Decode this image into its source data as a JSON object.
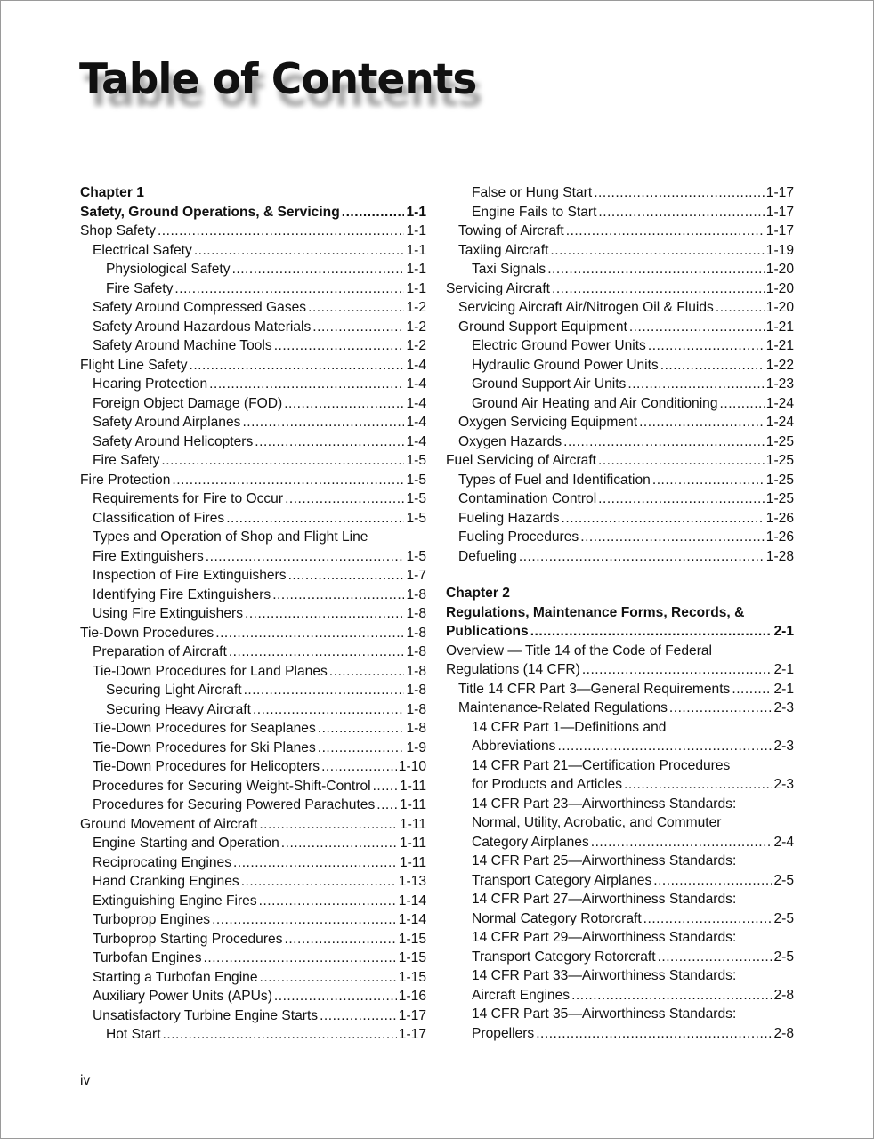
{
  "page_title": "Table of Contents",
  "folio": "iv",
  "left_column": [
    {
      "type": "chapter",
      "label": "Chapter 1",
      "lines": [
        "Safety, Ground Operations, & Servicing"
      ],
      "page": "1-1"
    },
    {
      "level": 0,
      "lines": [
        "Shop Safety"
      ],
      "page": "1-1"
    },
    {
      "level": 1,
      "lines": [
        "Electrical Safety"
      ],
      "page": "1-1"
    },
    {
      "level": 2,
      "lines": [
        "Physiological Safety"
      ],
      "page": "1-1"
    },
    {
      "level": 2,
      "lines": [
        "Fire Safety"
      ],
      "page": "1-1"
    },
    {
      "level": 1,
      "lines": [
        "Safety Around Compressed Gases"
      ],
      "page": "1-2"
    },
    {
      "level": 1,
      "lines": [
        "Safety Around Hazardous Materials"
      ],
      "page": "1-2"
    },
    {
      "level": 1,
      "lines": [
        "Safety Around Machine Tools"
      ],
      "page": "1-2"
    },
    {
      "level": 0,
      "lines": [
        "Flight Line Safety"
      ],
      "page": "1-4"
    },
    {
      "level": 1,
      "lines": [
        "Hearing Protection"
      ],
      "page": "1-4"
    },
    {
      "level": 1,
      "lines": [
        "Foreign Object Damage (FOD)"
      ],
      "page": "1-4"
    },
    {
      "level": 1,
      "lines": [
        "Safety Around Airplanes"
      ],
      "page": "1-4"
    },
    {
      "level": 1,
      "lines": [
        "Safety Around Helicopters"
      ],
      "page": "1-4"
    },
    {
      "level": 1,
      "lines": [
        "Fire Safety"
      ],
      "page": "1-5"
    },
    {
      "level": 0,
      "lines": [
        "Fire Protection"
      ],
      "page": "1-5"
    },
    {
      "level": 1,
      "lines": [
        "Requirements for Fire to Occur"
      ],
      "page": "1-5"
    },
    {
      "level": 1,
      "lines": [
        "Classification of Fires"
      ],
      "page": "1-5"
    },
    {
      "level": 1,
      "lines": [
        "Types and Operation of Shop and Flight Line",
        "Fire Extinguishers"
      ],
      "page": "1-5"
    },
    {
      "level": 1,
      "lines": [
        "Inspection of Fire Extinguishers"
      ],
      "page": "1-7"
    },
    {
      "level": 1,
      "lines": [
        "Identifying Fire Extinguishers"
      ],
      "page": "1-8"
    },
    {
      "level": 1,
      "lines": [
        "Using Fire Extinguishers"
      ],
      "page": "1-8"
    },
    {
      "level": 0,
      "lines": [
        "Tie-Down Procedures"
      ],
      "page": "1-8"
    },
    {
      "level": 1,
      "lines": [
        "Preparation of Aircraft"
      ],
      "page": "1-8"
    },
    {
      "level": 1,
      "lines": [
        "Tie-Down Procedures for Land Planes"
      ],
      "page": "1-8"
    },
    {
      "level": 2,
      "lines": [
        "Securing Light Aircraft"
      ],
      "page": "1-8"
    },
    {
      "level": 2,
      "lines": [
        "Securing Heavy Aircraft"
      ],
      "page": "1-8"
    },
    {
      "level": 1,
      "lines": [
        "Tie-Down Procedures for Seaplanes"
      ],
      "page": "1-8"
    },
    {
      "level": 1,
      "lines": [
        "Tie-Down Procedures for Ski Planes"
      ],
      "page": "1-9"
    },
    {
      "level": 1,
      "lines": [
        "Tie-Down Procedures for Helicopters"
      ],
      "page": "1-10"
    },
    {
      "level": 1,
      "lines": [
        "Procedures for Securing Weight-Shift-Control"
      ],
      "page": "1-11"
    },
    {
      "level": 1,
      "lines": [
        "Procedures for Securing Powered Parachutes"
      ],
      "page": "1-11"
    },
    {
      "level": 0,
      "lines": [
        "Ground Movement of Aircraft"
      ],
      "page": "1-11"
    },
    {
      "level": 1,
      "lines": [
        "Engine Starting and Operation"
      ],
      "page": "1-11"
    },
    {
      "level": 1,
      "lines": [
        "Reciprocating Engines"
      ],
      "page": "1-11"
    },
    {
      "level": 1,
      "lines": [
        "Hand Cranking Engines"
      ],
      "page": "1-13"
    },
    {
      "level": 1,
      "lines": [
        "Extinguishing Engine Fires"
      ],
      "page": "1-14"
    },
    {
      "level": 1,
      "lines": [
        "Turboprop Engines"
      ],
      "page": "1-14"
    },
    {
      "level": 1,
      "lines": [
        "Turboprop Starting Procedures"
      ],
      "page": "1-15"
    },
    {
      "level": 1,
      "lines": [
        "Turbofan Engines"
      ],
      "page": "1-15"
    },
    {
      "level": 1,
      "lines": [
        "Starting a Turbofan Engine"
      ],
      "page": "1-15"
    },
    {
      "level": 1,
      "lines": [
        "Auxiliary Power Units (APUs)"
      ],
      "page": "1-16"
    },
    {
      "level": 1,
      "lines": [
        "Unsatisfactory Turbine Engine Starts"
      ],
      "page": "1-17"
    },
    {
      "level": 2,
      "lines": [
        "Hot Start"
      ],
      "page": "1-17"
    }
  ],
  "right_column": [
    {
      "level": 2,
      "lines": [
        "False or Hung Start"
      ],
      "page": "1-17"
    },
    {
      "level": 2,
      "lines": [
        "Engine Fails to Start"
      ],
      "page": "1-17"
    },
    {
      "level": 1,
      "lines": [
        "Towing of Aircraft"
      ],
      "page": "1-17"
    },
    {
      "level": 1,
      "lines": [
        "Taxiing Aircraft"
      ],
      "page": "1-19"
    },
    {
      "level": 2,
      "lines": [
        "Taxi Signals"
      ],
      "page": "1-20"
    },
    {
      "level": 0,
      "lines": [
        "Servicing Aircraft"
      ],
      "page": "1-20"
    },
    {
      "level": 1,
      "lines": [
        "Servicing Aircraft Air/Nitrogen Oil & Fluids"
      ],
      "page": "1-20"
    },
    {
      "level": 1,
      "lines": [
        "Ground Support Equipment"
      ],
      "page": "1-21"
    },
    {
      "level": 2,
      "lines": [
        "Electric Ground Power Units"
      ],
      "page": "1-21"
    },
    {
      "level": 2,
      "lines": [
        "Hydraulic Ground Power Units"
      ],
      "page": "1-22"
    },
    {
      "level": 2,
      "lines": [
        "Ground Support Air Units"
      ],
      "page": "1-23"
    },
    {
      "level": 2,
      "lines": [
        "Ground Air Heating and Air Conditioning"
      ],
      "page": "1-24"
    },
    {
      "level": 1,
      "lines": [
        "Oxygen Servicing Equipment"
      ],
      "page": "1-24"
    },
    {
      "level": 1,
      "lines": [
        "Oxygen Hazards"
      ],
      "page": "1-25"
    },
    {
      "level": 0,
      "lines": [
        "Fuel Servicing of Aircraft"
      ],
      "page": "1-25"
    },
    {
      "level": 1,
      "lines": [
        "Types of Fuel and Identification"
      ],
      "page": "1-25"
    },
    {
      "level": 1,
      "lines": [
        "Contamination Control"
      ],
      "page": "1-25"
    },
    {
      "level": 1,
      "lines": [
        "Fueling Hazards"
      ],
      "page": "1-26"
    },
    {
      "level": 1,
      "lines": [
        "Fueling Procedures"
      ],
      "page": "1-26"
    },
    {
      "level": 1,
      "lines": [
        "Defueling"
      ],
      "page": "1-28"
    },
    {
      "type": "chapter",
      "label": "Chapter 2",
      "lines": [
        "Regulations, Maintenance Forms, Records, &",
        "Publications"
      ],
      "page": "2-1"
    },
    {
      "level": 0,
      "lines": [
        "Overview — Title 14 of the Code of Federal",
        "Regulations (14 CFR)"
      ],
      "page": "2-1"
    },
    {
      "level": 1,
      "lines": [
        "Title 14 CFR Part 3—General Requirements"
      ],
      "page": "2-1"
    },
    {
      "level": 1,
      "lines": [
        "Maintenance-Related Regulations"
      ],
      "page": "2-3"
    },
    {
      "level": 2,
      "lines": [
        "14 CFR Part 1—Definitions and",
        "Abbreviations"
      ],
      "page": "2-3"
    },
    {
      "level": 2,
      "lines": [
        "14 CFR Part 21—Certification Procedures",
        "for Products and Articles"
      ],
      "page": "2-3"
    },
    {
      "level": 2,
      "lines": [
        "14 CFR Part 23—Airworthiness Standards:",
        "Normal, Utility, Acrobatic, and Commuter",
        "Category Airplanes"
      ],
      "page": "2-4"
    },
    {
      "level": 2,
      "lines": [
        "14 CFR Part 25—Airworthiness Standards:",
        "Transport Category Airplanes"
      ],
      "page": "2-5"
    },
    {
      "level": 2,
      "lines": [
        "14 CFR Part 27—Airworthiness Standards:",
        "Normal Category Rotorcraft"
      ],
      "page": "2-5"
    },
    {
      "level": 2,
      "lines": [
        "14 CFR Part 29—Airworthiness Standards:",
        "Transport Category Rotorcraft"
      ],
      "page": "2-5"
    },
    {
      "level": 2,
      "lines": [
        "14 CFR Part 33—Airworthiness Standards:",
        "Aircraft Engines"
      ],
      "page": "2-8"
    },
    {
      "level": 2,
      "lines": [
        "14 CFR Part 35—Airworthiness Standards:",
        "Propellers"
      ],
      "page": "2-8"
    }
  ]
}
